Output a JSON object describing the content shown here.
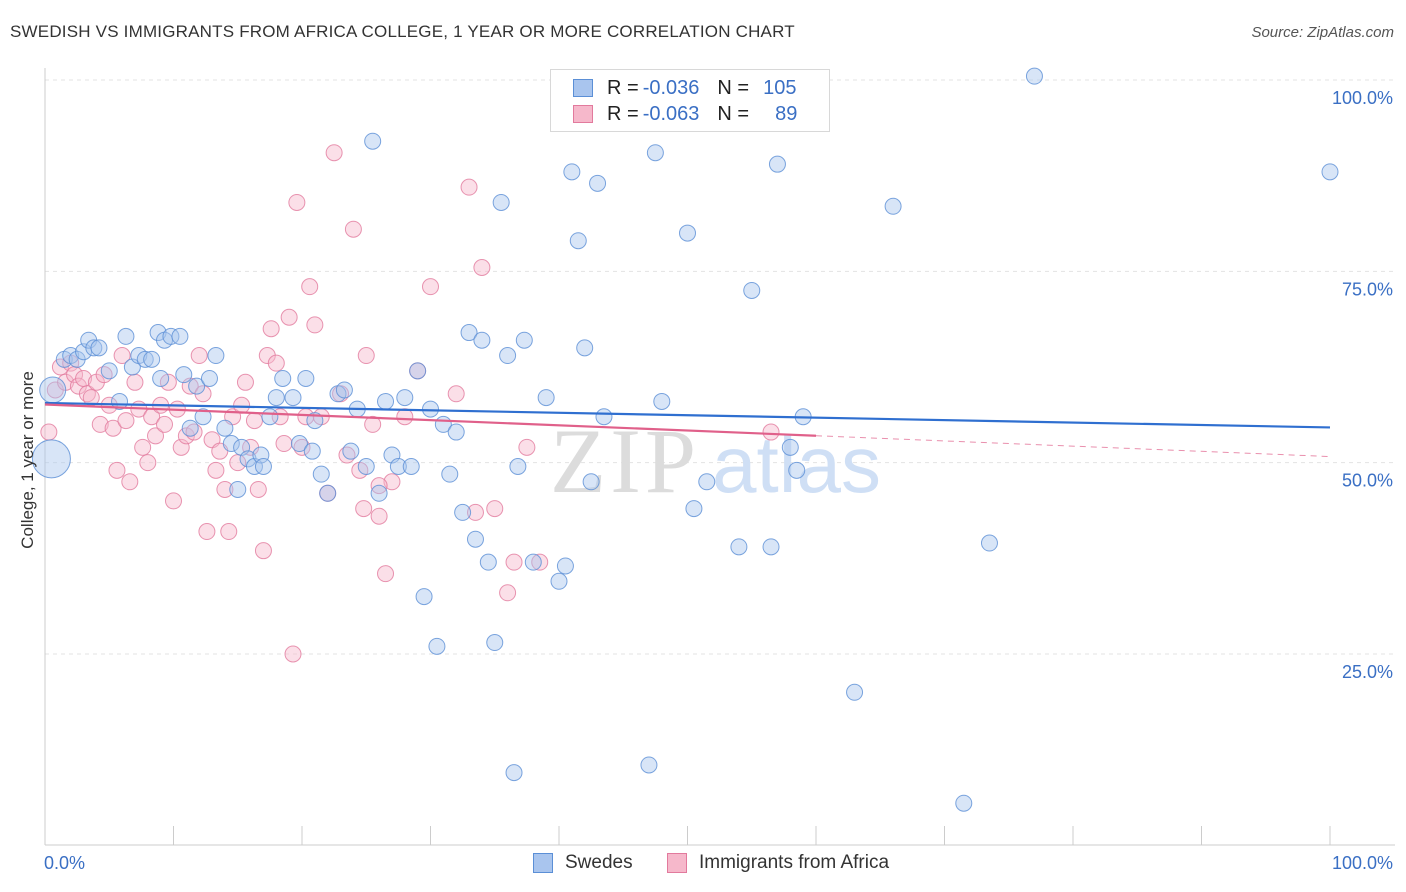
{
  "title": "SWEDISH VS IMMIGRANTS FROM AFRICA COLLEGE, 1 YEAR OR MORE CORRELATION CHART",
  "source": "Source: ZipAtlas.com",
  "watermark": {
    "zip": "ZIP",
    "atlas": "atlas"
  },
  "legend": {
    "swedes": {
      "r_label": "R =",
      "r_value": "-0.036",
      "n_label": "N =",
      "n_value": "105"
    },
    "africa": {
      "r_label": "R =",
      "r_value": "-0.063",
      "n_label": "N =",
      "n_value": "89"
    }
  },
  "bottom_legend": {
    "swedes": "Swedes",
    "africa": "Immigrants from Africa"
  },
  "colors": {
    "swedes_fill": "#a9c5ee",
    "swedes_stroke": "#5b8fd6",
    "swedes_line": "#2f6fd0",
    "africa_fill": "#f6b8cb",
    "africa_stroke": "#e27a9d",
    "africa_line": "#e0608a",
    "tick_label": "#3a6fc4",
    "grid": "#e3e3e3"
  },
  "chart_data": {
    "type": "scatter",
    "title": "SWEDISH VS IMMIGRANTS FROM AFRICA COLLEGE, 1 YEAR OR MORE CORRELATION CHART",
    "xlabel": "",
    "ylabel": "College, 1 year or more",
    "xlim": [
      0,
      100
    ],
    "ylim": [
      0,
      105
    ],
    "x_tick_labels": [
      "0.0%",
      "100.0%"
    ],
    "y_ticks": [
      25,
      50,
      75,
      100
    ],
    "y_tick_labels": [
      "25.0%",
      "50.0%",
      "75.0%",
      "100.0%"
    ],
    "series": [
      {
        "name": "Swedes",
        "r": -0.036,
        "n": 105,
        "trend": {
          "x": [
            0,
            100
          ],
          "y": [
            57.8,
            54.6
          ],
          "dashed_from": null
        },
        "points": [
          [
            0.5,
            50.5
          ],
          [
            0.6,
            59.5
          ],
          [
            1.5,
            63.5
          ],
          [
            2.0,
            64.0
          ],
          [
            2.5,
            63.5
          ],
          [
            3.0,
            64.5
          ],
          [
            3.4,
            66.0
          ],
          [
            3.8,
            65.0
          ],
          [
            4.2,
            65.0
          ],
          [
            5.0,
            62.0
          ],
          [
            5.8,
            58.0
          ],
          [
            6.3,
            66.5
          ],
          [
            6.8,
            62.5
          ],
          [
            7.3,
            64.0
          ],
          [
            7.8,
            63.5
          ],
          [
            8.3,
            63.5
          ],
          [
            8.8,
            67.0
          ],
          [
            9.3,
            66.0
          ],
          [
            9.8,
            66.5
          ],
          [
            10.5,
            66.5
          ],
          [
            10.8,
            61.5
          ],
          [
            11.3,
            54.5
          ],
          [
            11.8,
            60.0
          ],
          [
            12.3,
            56.0
          ],
          [
            12.8,
            61.0
          ],
          [
            13.3,
            64.0
          ],
          [
            14.0,
            54.5
          ],
          [
            14.5,
            52.5
          ],
          [
            15.0,
            46.5
          ],
          [
            15.3,
            52.0
          ],
          [
            15.8,
            50.5
          ],
          [
            16.3,
            49.5
          ],
          [
            16.8,
            51.0
          ],
          [
            17.5,
            56.0
          ],
          [
            18.0,
            58.5
          ],
          [
            18.5,
            61.0
          ],
          [
            19.3,
            58.5
          ],
          [
            19.8,
            52.5
          ],
          [
            20.3,
            61.0
          ],
          [
            20.8,
            51.5
          ],
          [
            21.5,
            48.5
          ],
          [
            22.0,
            46.0
          ],
          [
            22.8,
            59.0
          ],
          [
            23.3,
            59.5
          ],
          [
            23.8,
            51.5
          ],
          [
            24.3,
            57.0
          ],
          [
            25.0,
            49.5
          ],
          [
            25.5,
            92.0
          ],
          [
            26.0,
            46.0
          ],
          [
            26.5,
            58.0
          ],
          [
            27.0,
            51.0
          ],
          [
            27.5,
            49.5
          ],
          [
            28.0,
            58.5
          ],
          [
            28.5,
            49.5
          ],
          [
            29.0,
            62.0
          ],
          [
            29.5,
            32.5
          ],
          [
            30.0,
            57.0
          ],
          [
            30.5,
            26.0
          ],
          [
            31.0,
            55.0
          ],
          [
            31.5,
            48.5
          ],
          [
            32.0,
            54.0
          ],
          [
            32.5,
            43.5
          ],
          [
            33.0,
            67.0
          ],
          [
            33.5,
            40.0
          ],
          [
            34.0,
            66.0
          ],
          [
            34.5,
            37.0
          ],
          [
            35.0,
            26.5
          ],
          [
            35.5,
            84.0
          ],
          [
            36.0,
            64.0
          ],
          [
            36.5,
            9.5
          ],
          [
            36.8,
            49.5
          ],
          [
            37.3,
            66.0
          ],
          [
            38.0,
            37.0
          ],
          [
            39.0,
            58.5
          ],
          [
            40.0,
            34.5
          ],
          [
            40.5,
            36.5
          ],
          [
            41.0,
            88.0
          ],
          [
            41.5,
            79.0
          ],
          [
            42.0,
            65.0
          ],
          [
            42.5,
            47.5
          ],
          [
            43.0,
            86.5
          ],
          [
            43.5,
            56.0
          ],
          [
            47.0,
            10.5
          ],
          [
            47.5,
            90.5
          ],
          [
            48.0,
            58.0
          ],
          [
            50.0,
            80.0
          ],
          [
            50.5,
            44.0
          ],
          [
            51.5,
            47.5
          ],
          [
            54.0,
            39.0
          ],
          [
            55.0,
            72.5
          ],
          [
            56.5,
            39.0
          ],
          [
            57.0,
            89.0
          ],
          [
            58.0,
            52.0
          ],
          [
            58.5,
            49.0
          ],
          [
            59.0,
            56.0
          ],
          [
            63.0,
            20.0
          ],
          [
            66.0,
            83.5
          ],
          [
            71.5,
            5.5
          ],
          [
            73.5,
            39.5
          ],
          [
            77.0,
            100.5
          ],
          [
            100.0,
            88.0
          ],
          [
            21.0,
            55.5
          ],
          [
            9.0,
            61.0
          ],
          [
            17.0,
            49.5
          ]
        ]
      },
      {
        "name": "Immigrants from Africa",
        "r": -0.063,
        "n": 89,
        "trend": {
          "x": [
            0,
            100
          ],
          "y": [
            57.6,
            50.8
          ],
          "dashed_from": 60
        },
        "points": [
          [
            0.3,
            54.0
          ],
          [
            0.8,
            59.5
          ],
          [
            1.2,
            62.5
          ],
          [
            1.6,
            60.5
          ],
          [
            2.0,
            63.0
          ],
          [
            2.3,
            61.5
          ],
          [
            2.6,
            60.0
          ],
          [
            3.0,
            61.0
          ],
          [
            3.3,
            59.0
          ],
          [
            3.6,
            58.5
          ],
          [
            4.0,
            60.5
          ],
          [
            4.3,
            55.0
          ],
          [
            4.6,
            61.5
          ],
          [
            5.0,
            57.5
          ],
          [
            5.3,
            54.5
          ],
          [
            5.6,
            49.0
          ],
          [
            6.0,
            64.0
          ],
          [
            6.3,
            55.5
          ],
          [
            6.6,
            47.5
          ],
          [
            7.0,
            60.5
          ],
          [
            7.3,
            57.0
          ],
          [
            7.6,
            52.0
          ],
          [
            8.0,
            50.0
          ],
          [
            8.3,
            56.0
          ],
          [
            8.6,
            53.5
          ],
          [
            9.0,
            57.5
          ],
          [
            9.3,
            55.0
          ],
          [
            9.6,
            60.5
          ],
          [
            10.0,
            45.0
          ],
          [
            10.3,
            57.0
          ],
          [
            10.6,
            52.0
          ],
          [
            11.0,
            53.5
          ],
          [
            11.3,
            60.0
          ],
          [
            11.6,
            54.0
          ],
          [
            12.0,
            64.0
          ],
          [
            12.3,
            59.0
          ],
          [
            12.6,
            41.0
          ],
          [
            13.0,
            53.0
          ],
          [
            13.3,
            49.0
          ],
          [
            13.6,
            51.5
          ],
          [
            14.0,
            46.5
          ],
          [
            14.3,
            41.0
          ],
          [
            14.6,
            56.0
          ],
          [
            15.0,
            50.0
          ],
          [
            15.3,
            57.5
          ],
          [
            15.6,
            60.5
          ],
          [
            16.0,
            52.0
          ],
          [
            16.3,
            55.5
          ],
          [
            16.6,
            46.5
          ],
          [
            17.0,
            38.5
          ],
          [
            17.3,
            64.0
          ],
          [
            17.6,
            67.5
          ],
          [
            18.0,
            63.0
          ],
          [
            18.3,
            56.0
          ],
          [
            18.6,
            52.5
          ],
          [
            19.0,
            69.0
          ],
          [
            19.3,
            25.0
          ],
          [
            19.6,
            84.0
          ],
          [
            20.0,
            52.0
          ],
          [
            20.3,
            56.0
          ],
          [
            20.6,
            73.0
          ],
          [
            21.0,
            68.0
          ],
          [
            21.5,
            56.0
          ],
          [
            22.0,
            46.0
          ],
          [
            22.5,
            90.5
          ],
          [
            23.0,
            59.0
          ],
          [
            23.5,
            51.0
          ],
          [
            24.0,
            80.5
          ],
          [
            24.5,
            49.0
          ],
          [
            25.0,
            64.0
          ],
          [
            25.5,
            55.0
          ],
          [
            26.0,
            43.0
          ],
          [
            26.5,
            35.5
          ],
          [
            27.0,
            47.5
          ],
          [
            28.0,
            56.0
          ],
          [
            29.0,
            62.0
          ],
          [
            30.0,
            73.0
          ],
          [
            32.0,
            59.0
          ],
          [
            33.0,
            86.0
          ],
          [
            33.5,
            43.5
          ],
          [
            34.0,
            75.5
          ],
          [
            35.0,
            44.0
          ],
          [
            36.0,
            33.0
          ],
          [
            36.5,
            37.0
          ],
          [
            37.5,
            52.0
          ],
          [
            38.5,
            37.0
          ],
          [
            56.5,
            54.0
          ],
          [
            26.0,
            47.0
          ],
          [
            24.8,
            44.0
          ]
        ]
      }
    ]
  }
}
